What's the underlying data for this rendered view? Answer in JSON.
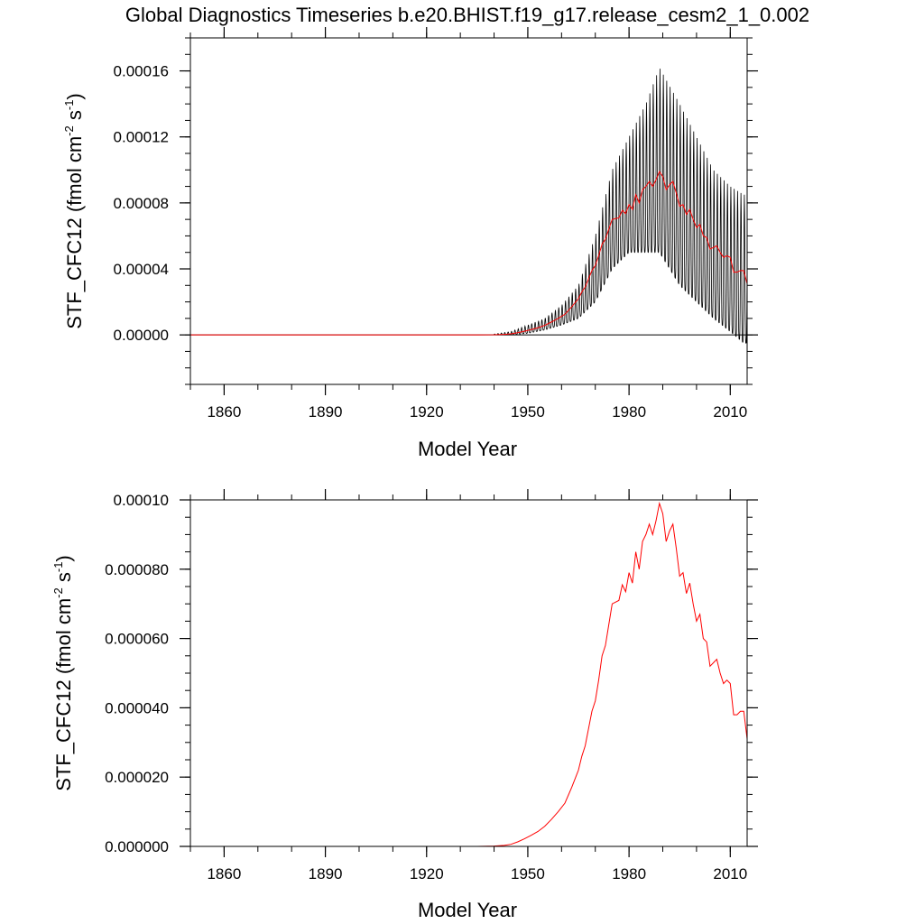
{
  "title": "Global Diagnostics Timeseries b.e20.BHIST.f19_g17.release_cesm2_1_0.002",
  "colors": {
    "monthly": "#000000",
    "annual": "#ff0000",
    "axis": "#000000"
  },
  "chart_data": [
    {
      "type": "line",
      "panel": "top",
      "xlabel": "Model Year",
      "ylabel_parts": {
        "main": "STF_CFC12 (fmol cm",
        "exp1": "-2",
        "mid": " s",
        "exp2": "-1",
        "end": ")"
      },
      "xlim": [
        1850,
        2015
      ],
      "ylim": [
        -3e-05,
        0.00018
      ],
      "xticks": [
        1860,
        1890,
        1920,
        1950,
        1980,
        2010
      ],
      "xtick_labels": [
        "1860",
        "1890",
        "1920",
        "1950",
        "1980",
        "2010"
      ],
      "yticks": [
        0,
        4e-05,
        8e-05,
        0.00012,
        0.00016
      ],
      "ytick_labels": [
        "0.00000",
        "0.00004",
        "0.00008",
        "0.00012",
        "0.00016"
      ],
      "zero_line": 0,
      "series": [
        {
          "name": "monthly",
          "color": "#000000",
          "description": "seasonal cycle around annual mean, amplitude grows with mean",
          "envelope_years": [
            1940,
            1945,
            1950,
            1955,
            1960,
            1965,
            1970,
            1975,
            1980,
            1985,
            1989,
            1995,
            2000,
            2005,
            2010,
            2014
          ],
          "envelope_max": [
            5e-07,
            2e-06,
            6e-06,
            1e-05,
            1.8e-05,
            3e-05,
            6e-05,
            0.0001,
            0.00012,
            0.00014,
            0.000162,
            0.00014,
            0.00012,
            0.0001,
            9e-05,
            8.5e-05
          ],
          "envelope_min": [
            0,
            0,
            1e-06,
            3e-06,
            6e-06,
            1e-05,
            2e-05,
            4e-05,
            5e-05,
            5e-05,
            5e-05,
            3e-05,
            2e-05,
            1e-05,
            2e-06,
            -5e-06
          ]
        },
        {
          "name": "annual",
          "color": "#ff0000",
          "x": [
            1935,
            1940,
            1943,
            1945,
            1947,
            1949,
            1951,
            1953,
            1955,
            1957,
            1959,
            1961,
            1963,
            1965,
            1966,
            1967,
            1968,
            1969,
            1970,
            1971,
            1972,
            1973,
            1974,
            1975,
            1976,
            1977,
            1978,
            1979,
            1980,
            1981,
            1982,
            1983,
            1984,
            1985,
            1986,
            1987,
            1988,
            1989,
            1990,
            1991,
            1992,
            1993,
            1994,
            1995,
            1996,
            1997,
            1998,
            1999,
            2000,
            2001,
            2002,
            2003,
            2004,
            2005,
            2006,
            2007,
            2008,
            2009,
            2010,
            2011,
            2012,
            2013,
            2014,
            2015
          ],
          "y": [
            0,
            1e-07,
            3e-07,
            6e-07,
            1.3e-06,
            2.2e-06,
            3.2e-06,
            4.3e-06,
            5.8e-06,
            7.8e-06,
            1e-05,
            1.25e-05,
            1.7e-05,
            2.2e-05,
            2.6e-05,
            2.9e-05,
            3.4e-05,
            3.9e-05,
            4.2e-05,
            4.8e-05,
            5.5e-05,
            5.8e-05,
            6.4e-05,
            7e-05,
            7.05e-05,
            7.1e-05,
            7.55e-05,
            7.35e-05,
            7.9e-05,
            7.6e-05,
            8.5e-05,
            8e-05,
            8.8e-05,
            9e-05,
            9.3e-05,
            9e-05,
            9.4e-05,
            9.9e-05,
            9.6e-05,
            8.8e-05,
            9.1e-05,
            9.3e-05,
            8.6e-05,
            7.8e-05,
            7.9e-05,
            7.3e-05,
            7.6e-05,
            7e-05,
            6.5e-05,
            6.7e-05,
            6e-05,
            5.9e-05,
            5.2e-05,
            5.3e-05,
            5.4e-05,
            5e-05,
            4.7e-05,
            4.8e-05,
            4.7e-05,
            3.8e-05,
            3.8e-05,
            3.9e-05,
            3.9e-05,
            3.1e-05
          ]
        }
      ]
    },
    {
      "type": "line",
      "panel": "bottom",
      "xlabel": "Model Year",
      "ylabel_parts": {
        "main": "STF_CFC12 (fmol cm",
        "exp1": "-2",
        "mid": " s",
        "exp2": "-1",
        "end": ")"
      },
      "xlim": [
        1850,
        2015
      ],
      "ylim": [
        0,
        0.0001
      ],
      "xticks": [
        1860,
        1890,
        1920,
        1950,
        1980,
        2010
      ],
      "xtick_labels": [
        "1860",
        "1890",
        "1920",
        "1950",
        "1980",
        "2010"
      ],
      "yticks": [
        0,
        2e-05,
        4e-05,
        6e-05,
        8e-05,
        0.0001
      ],
      "ytick_labels": [
        "0.000000",
        "0.000020",
        "0.000040",
        "0.000060",
        "0.000080",
        "0.00010"
      ],
      "series": [
        {
          "name": "annual",
          "color": "#ff0000",
          "x": [
            1935,
            1940,
            1943,
            1945,
            1947,
            1949,
            1951,
            1953,
            1955,
            1957,
            1959,
            1961,
            1963,
            1965,
            1966,
            1967,
            1968,
            1969,
            1970,
            1971,
            1972,
            1973,
            1974,
            1975,
            1976,
            1977,
            1978,
            1979,
            1980,
            1981,
            1982,
            1983,
            1984,
            1985,
            1986,
            1987,
            1988,
            1989,
            1990,
            1991,
            1992,
            1993,
            1994,
            1995,
            1996,
            1997,
            1998,
            1999,
            2000,
            2001,
            2002,
            2003,
            2004,
            2005,
            2006,
            2007,
            2008,
            2009,
            2010,
            2011,
            2012,
            2013,
            2014,
            2015
          ],
          "y": [
            0,
            1e-07,
            3e-07,
            6e-07,
            1.3e-06,
            2.2e-06,
            3.2e-06,
            4.3e-06,
            5.8e-06,
            7.8e-06,
            1e-05,
            1.25e-05,
            1.7e-05,
            2.2e-05,
            2.6e-05,
            2.9e-05,
            3.4e-05,
            3.9e-05,
            4.2e-05,
            4.8e-05,
            5.5e-05,
            5.8e-05,
            6.4e-05,
            7e-05,
            7.05e-05,
            7.1e-05,
            7.55e-05,
            7.35e-05,
            7.9e-05,
            7.6e-05,
            8.5e-05,
            8e-05,
            8.8e-05,
            9e-05,
            9.3e-05,
            9e-05,
            9.4e-05,
            9.9e-05,
            9.6e-05,
            8.8e-05,
            9.1e-05,
            9.3e-05,
            8.6e-05,
            7.8e-05,
            7.9e-05,
            7.3e-05,
            7.6e-05,
            7e-05,
            6.5e-05,
            6.7e-05,
            6e-05,
            5.9e-05,
            5.2e-05,
            5.3e-05,
            5.4e-05,
            5e-05,
            4.7e-05,
            4.8e-05,
            4.7e-05,
            3.8e-05,
            3.8e-05,
            3.9e-05,
            3.9e-05,
            3.1e-05
          ]
        }
      ]
    }
  ]
}
